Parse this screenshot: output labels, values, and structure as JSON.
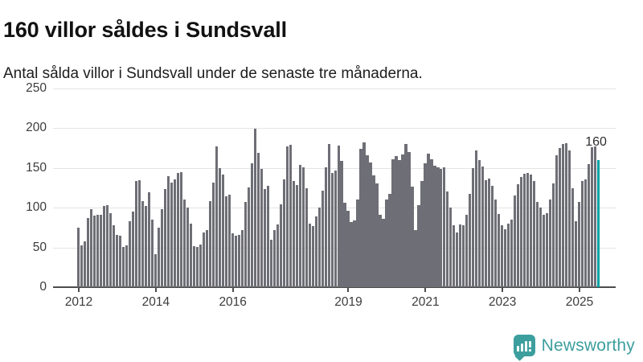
{
  "header": {
    "title": "160 villor såldes i Sundsvall",
    "subtitle": "Antal sålda villor i Sundsvall under de senaste tre månaderna."
  },
  "footer": {
    "brand": "Newsworthy"
  },
  "colors": {
    "bar": "#6e6e76",
    "highlight": "#00a2a2",
    "brand": "#3d9e9e",
    "gridline": "#e4e4e4",
    "axis": "#4d4d4d"
  },
  "chart_data": {
    "type": "bar",
    "title": "160 villor såldes i Sundsvall",
    "xlabel": "",
    "ylabel": "",
    "x_start": "2012-01",
    "x_interval": "month",
    "ylim": [
      0,
      250
    ],
    "y_ticks": [
      0,
      50,
      100,
      150,
      200,
      250
    ],
    "grid": "horizontal",
    "x_ticks": [
      {
        "label": "2012",
        "month_index": 0
      },
      {
        "label": "2014",
        "month_index": 24
      },
      {
        "label": "2016",
        "month_index": 48
      },
      {
        "label": "2019",
        "month_index": 84
      },
      {
        "label": "2021",
        "month_index": 108
      },
      {
        "label": "2023",
        "month_index": 132
      },
      {
        "label": "2025",
        "month_index": 156
      }
    ],
    "values": [
      75,
      53,
      58,
      87,
      98,
      90,
      91,
      91,
      102,
      103,
      93,
      78,
      66,
      65,
      51,
      53,
      83,
      95,
      134,
      135,
      108,
      102,
      119,
      85,
      41,
      75,
      98,
      123,
      140,
      132,
      136,
      144,
      145,
      110,
      100,
      80,
      52,
      51,
      54,
      69,
      72,
      108,
      132,
      177,
      150,
      142,
      114,
      116,
      68,
      65,
      66,
      72,
      107,
      126,
      156,
      199,
      169,
      149,
      123,
      128,
      60,
      72,
      79,
      104,
      136,
      177,
      179,
      134,
      129,
      154,
      151,
      124,
      80,
      77,
      89,
      100,
      121,
      151,
      180,
      144,
      147,
      178,
      159,
      106,
      96,
      82,
      84,
      110,
      174,
      182,
      166,
      157,
      141,
      131,
      91,
      86,
      110,
      117,
      161,
      165,
      160,
      167,
      180,
      170,
      127,
      72,
      103,
      134,
      156,
      168,
      161,
      153,
      151,
      149,
      151,
      120,
      100,
      78,
      69,
      79,
      78,
      91,
      117,
      150,
      172,
      160,
      152,
      135,
      137,
      128,
      110,
      92,
      78,
      73,
      80,
      85,
      115,
      130,
      139,
      143,
      144,
      142,
      134,
      107,
      100,
      91,
      93,
      110,
      131,
      166,
      175,
      180,
      181,
      172,
      125,
      83,
      107,
      134,
      136,
      155,
      176,
      177,
      160
    ],
    "highlight": {
      "index_from_end": 0,
      "value": 160,
      "label": "160"
    },
    "legend": null
  }
}
